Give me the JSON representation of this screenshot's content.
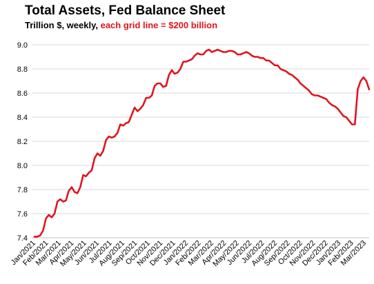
{
  "chart_data": {
    "type": "line",
    "title": "Total Assets, Fed Balance Sheet",
    "subtitle_plain": "Trillion $, weekly, ",
    "subtitle_accent": "each grid line = $200 billion",
    "ylim": [
      7.4,
      9.0
    ],
    "yticks": [
      "7.4",
      "7.6",
      "7.8",
      "8.0",
      "8.2",
      "8.4",
      "8.6",
      "8.8",
      "9.0"
    ],
    "x_labels": [
      "Jan/2021",
      "Feb/2021",
      "Mar/2021",
      "Apr/2021",
      "May/2021",
      "Jun/2021",
      "Jul/2021",
      "Aug/2021",
      "Sep/2021",
      "Oct/2021",
      "Nov/2021",
      "Dec/2021",
      "Jan/2022",
      "Feb/2022",
      "Mar/2022",
      "Apr/2022",
      "May/2022",
      "Jun/2022",
      "Jul/2022",
      "Aug/2022",
      "Sep/2022",
      "Oct/2022",
      "Nov/2022",
      "Dec/2022",
      "Jan/2023",
      "Feb/2023",
      "Mar/2023"
    ],
    "grid": true,
    "line_color": "#e0141e",
    "series": [
      {
        "values": [
          7.41,
          7.41,
          7.42,
          7.46,
          7.56,
          7.59,
          7.57,
          7.6,
          7.7,
          7.72,
          7.7,
          7.71,
          7.79,
          7.82,
          7.78,
          7.77,
          7.82,
          7.92,
          7.91,
          7.94,
          7.96,
          8.06,
          8.1,
          8.08,
          8.12,
          8.21,
          8.24,
          8.23,
          8.24,
          8.27,
          8.34,
          8.33,
          8.35,
          8.36,
          8.42,
          8.48,
          8.45,
          8.47,
          8.5,
          8.56,
          8.56,
          8.58,
          8.66,
          8.68,
          8.68,
          8.65,
          8.66,
          8.75,
          8.79,
          8.76,
          8.77,
          8.8,
          8.86,
          8.86,
          8.87,
          8.88,
          8.91,
          8.93,
          8.92,
          8.92,
          8.95,
          8.96,
          8.94,
          8.95,
          8.96,
          8.95,
          8.94,
          8.94,
          8.95,
          8.95,
          8.94,
          8.92,
          8.92,
          8.93,
          8.94,
          8.93,
          8.91,
          8.9,
          8.9,
          8.89,
          8.89,
          8.87,
          8.87,
          8.85,
          8.83,
          8.83,
          8.8,
          8.79,
          8.78,
          8.76,
          8.75,
          8.73,
          8.71,
          8.68,
          8.66,
          8.64,
          8.62,
          8.59,
          8.58,
          8.58,
          8.57,
          8.56,
          8.55,
          8.52,
          8.5,
          8.49,
          8.47,
          8.44,
          8.41,
          8.4,
          8.37,
          8.34,
          8.34,
          8.63,
          8.7,
          8.73,
          8.7,
          8.63
        ]
      }
    ]
  }
}
